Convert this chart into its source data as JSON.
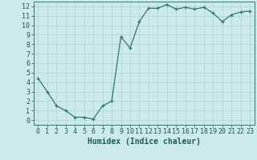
{
  "x": [
    0,
    1,
    2,
    3,
    4,
    5,
    6,
    7,
    8,
    9,
    10,
    11,
    12,
    13,
    14,
    15,
    16,
    17,
    18,
    19,
    20,
    21,
    22,
    23
  ],
  "y": [
    4.4,
    3.0,
    1.5,
    1.0,
    0.3,
    0.3,
    0.1,
    1.5,
    2.0,
    8.8,
    7.6,
    10.4,
    11.8,
    11.8,
    12.2,
    11.7,
    11.9,
    11.7,
    11.9,
    11.3,
    10.4,
    11.1,
    11.4,
    11.5
  ],
  "line_color": "#2d7a6b",
  "marker": "+",
  "marker_size": 3,
  "bg_color": "#cceae7",
  "grid_color": "#b0d4d0",
  "xlabel": "Humidex (Indice chaleur)",
  "xlabel_fontsize": 7,
  "tick_fontsize": 6,
  "xlim": [
    -0.5,
    23.5
  ],
  "ylim": [
    -0.5,
    12.5
  ],
  "yticks": [
    0,
    1,
    2,
    3,
    4,
    5,
    6,
    7,
    8,
    9,
    10,
    11,
    12
  ],
  "xticks": [
    0,
    1,
    2,
    3,
    4,
    5,
    6,
    7,
    8,
    9,
    10,
    11,
    12,
    13,
    14,
    15,
    16,
    17,
    18,
    19,
    20,
    21,
    22,
    23
  ],
  "line_width": 0.9,
  "axis_color": "#2d7a6b",
  "label_color": "#1a5c4e"
}
